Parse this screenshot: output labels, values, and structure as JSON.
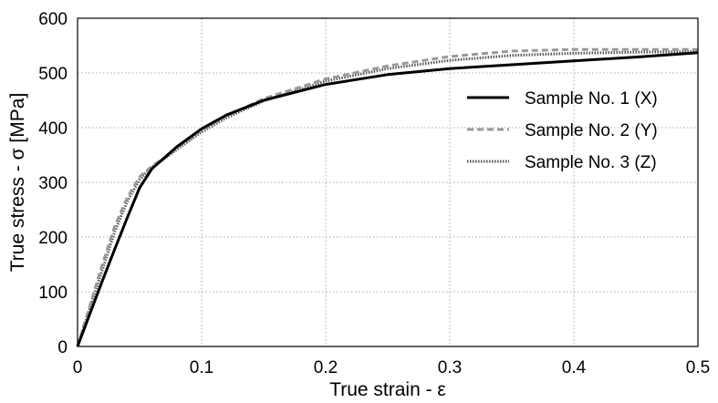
{
  "chart_data": {
    "type": "line",
    "title": "",
    "xlabel": "True strain - ε",
    "ylabel": "True stress - σ [MPa]",
    "xlim": [
      0,
      0.5
    ],
    "ylim": [
      0,
      600
    ],
    "xticks": [
      0,
      0.1,
      0.2,
      0.3,
      0.4,
      0.5
    ],
    "xtick_labels": [
      "0",
      "0.1",
      "0.2",
      "0.3",
      "0.4",
      "0.5"
    ],
    "yticks": [
      0,
      100,
      200,
      300,
      400,
      500,
      600
    ],
    "ytick_labels": [
      "0",
      "100",
      "200",
      "300",
      "400",
      "500",
      "600"
    ],
    "grid": true,
    "legend_position": "right",
    "series": [
      {
        "name": "Sample No. 1 (X)",
        "style": "solid",
        "color": "#000000",
        "x": [
          0,
          0.01,
          0.02,
          0.03,
          0.04,
          0.05,
          0.06,
          0.065,
          0.07,
          0.08,
          0.1,
          0.12,
          0.15,
          0.2,
          0.25,
          0.3,
          0.35,
          0.4,
          0.45,
          0.5
        ],
        "y": [
          0,
          60,
          120,
          178,
          235,
          290,
          325,
          335,
          345,
          365,
          398,
          423,
          450,
          479,
          497,
          508,
          515,
          522,
          529,
          537
        ]
      },
      {
        "name": "Sample No. 2 (Y)",
        "style": "dashed",
        "color": "#999999",
        "x": [
          0,
          0.01,
          0.02,
          0.03,
          0.04,
          0.05,
          0.06,
          0.07,
          0.08,
          0.1,
          0.12,
          0.15,
          0.2,
          0.25,
          0.3,
          0.35,
          0.4,
          0.45,
          0.5
        ],
        "y": [
          0,
          75,
          150,
          220,
          272,
          310,
          330,
          345,
          362,
          395,
          421,
          453,
          489,
          513,
          530,
          540,
          543,
          543,
          543
        ]
      },
      {
        "name": "Sample No. 3 (Z)",
        "style": "dotted",
        "color": "#555555",
        "x": [
          0,
          0.01,
          0.02,
          0.03,
          0.04,
          0.05,
          0.06,
          0.07,
          0.08,
          0.1,
          0.12,
          0.15,
          0.2,
          0.25,
          0.3,
          0.35,
          0.4,
          0.45,
          0.5
        ],
        "y": [
          0,
          70,
          140,
          210,
          265,
          305,
          328,
          343,
          360,
          392,
          418,
          449,
          485,
          508,
          523,
          532,
          536,
          538,
          539
        ]
      }
    ]
  }
}
